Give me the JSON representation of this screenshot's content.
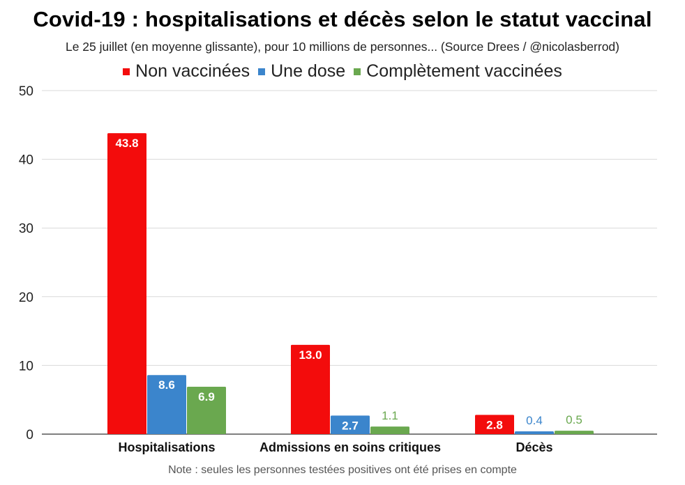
{
  "chart_data": {
    "type": "bar",
    "title": "Covid-19 : hospitalisations et décès selon le statut vaccinal",
    "subtitle": "Le 25 juillet (en moyenne glissante), pour 10 millions de personnes... (Source Drees / @nicolasberrod)",
    "note": "Note : seules les personnes testées positives ont été prises en compte",
    "categories": [
      "Hospitalisations",
      "Admissions en soins critiques",
      "Décès"
    ],
    "series": [
      {
        "name": "Non vaccinées",
        "color": "#f30c0c",
        "values": [
          43.8,
          13.0,
          2.8
        ],
        "labels": [
          "43.8",
          "13.0",
          "2.8"
        ]
      },
      {
        "name": "Une dose",
        "color": "#3b85cc",
        "values": [
          8.6,
          2.7,
          0.4
        ],
        "labels": [
          "8.6",
          "2.7",
          "0.4"
        ]
      },
      {
        "name": "Complètement vaccinées",
        "color": "#6aa84f",
        "values": [
          6.9,
          1.1,
          0.5
        ],
        "labels": [
          "6.9",
          "1.1",
          "0.5"
        ]
      }
    ],
    "ylim": [
      0,
      50
    ],
    "yticks": [
      "0",
      "10",
      "20",
      "30",
      "40",
      "50"
    ],
    "xlabel": "",
    "ylabel": "",
    "grid": true,
    "legend": "top-center"
  }
}
